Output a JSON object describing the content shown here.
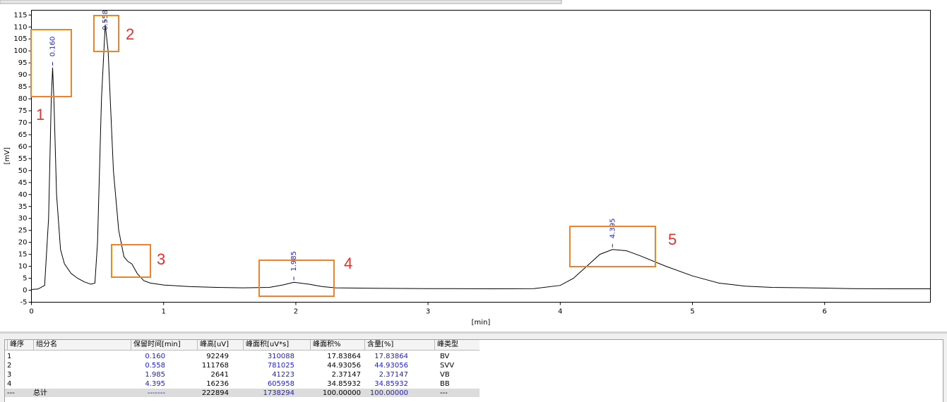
{
  "chart_data": {
    "type": "line",
    "x_label": "[min]",
    "y_label": "[mV]",
    "xlim": [
      0,
      6.8
    ],
    "ylim": [
      -5,
      117
    ],
    "xticks": [
      0,
      1,
      2,
      3,
      4,
      5,
      6
    ],
    "yticks": [
      -5,
      0,
      5,
      10,
      15,
      20,
      25,
      30,
      35,
      40,
      45,
      50,
      55,
      60,
      65,
      70,
      75,
      80,
      85,
      90,
      95,
      100,
      105,
      110,
      115
    ],
    "x": [
      0,
      0.05,
      0.1,
      0.13,
      0.15,
      0.16,
      0.17,
      0.19,
      0.22,
      0.25,
      0.3,
      0.35,
      0.4,
      0.45,
      0.48,
      0.5,
      0.53,
      0.558,
      0.58,
      0.62,
      0.66,
      0.7,
      0.73,
      0.76,
      0.8,
      0.85,
      0.9,
      1.0,
      1.2,
      1.4,
      1.6,
      1.8,
      1.9,
      1.985,
      2.1,
      2.2,
      2.3,
      2.6,
      3.0,
      3.5,
      3.8,
      4.0,
      4.1,
      4.2,
      4.3,
      4.395,
      4.5,
      4.6,
      4.8,
      5.0,
      5.2,
      5.4,
      5.6,
      6.0,
      6.2,
      6.5,
      6.8
    ],
    "series": [
      {
        "color": "#000000",
        "values": [
          0.3,
          0.5,
          2,
          30,
          80,
          93,
          80,
          40,
          17,
          11,
          7,
          5,
          3.5,
          2.5,
          3,
          20,
          80,
          111,
          100,
          50,
          25,
          14,
          12,
          11,
          7,
          4,
          3,
          2.2,
          1.5,
          1.2,
          1,
          1.2,
          2.2,
          3.3,
          2.5,
          1.5,
          1,
          0.8,
          0.7,
          0.6,
          0.7,
          2,
          5,
          10,
          15,
          17,
          16.5,
          14.5,
          10,
          6,
          3,
          1.7,
          1.2,
          0.9,
          0.7,
          0.6,
          0.6
        ]
      }
    ],
    "peak_labels": [
      {
        "value": 0.16,
        "label": "0.160"
      },
      {
        "value": 0.558,
        "label": "0.558"
      },
      {
        "value": 1.985,
        "label": "1.985"
      },
      {
        "value": 4.395,
        "label": "4.395"
      }
    ],
    "peak_label_color": "#2020d0"
  },
  "annotations": [
    "1",
    "2",
    "3",
    "4",
    "5"
  ],
  "table": {
    "header": [
      "峰序",
      "组分名",
      "保留时间[min]",
      "峰高[uV]",
      "峰面积[uV*s]",
      "峰面积%",
      "含量[%]",
      "峰类型"
    ],
    "rows": [
      [
        "1",
        null,
        "0.160",
        "92249",
        "310088",
        "17.83864",
        "17.83864",
        "BV"
      ],
      [
        "2",
        null,
        "0.558",
        "111768",
        "781025",
        "44.93056",
        "44.93056",
        "SVV"
      ],
      [
        "3",
        null,
        "1.985",
        "2641",
        "41223",
        "2.37147",
        "2.37147",
        "VB"
      ],
      [
        "4",
        null,
        "4.395",
        "16236",
        "605958",
        "34.85932",
        "34.85932",
        "BB"
      ],
      [
        "---",
        "总计",
        "-------",
        "222894",
        "1738294",
        "100.00000",
        "100.00000",
        "---"
      ]
    ]
  }
}
